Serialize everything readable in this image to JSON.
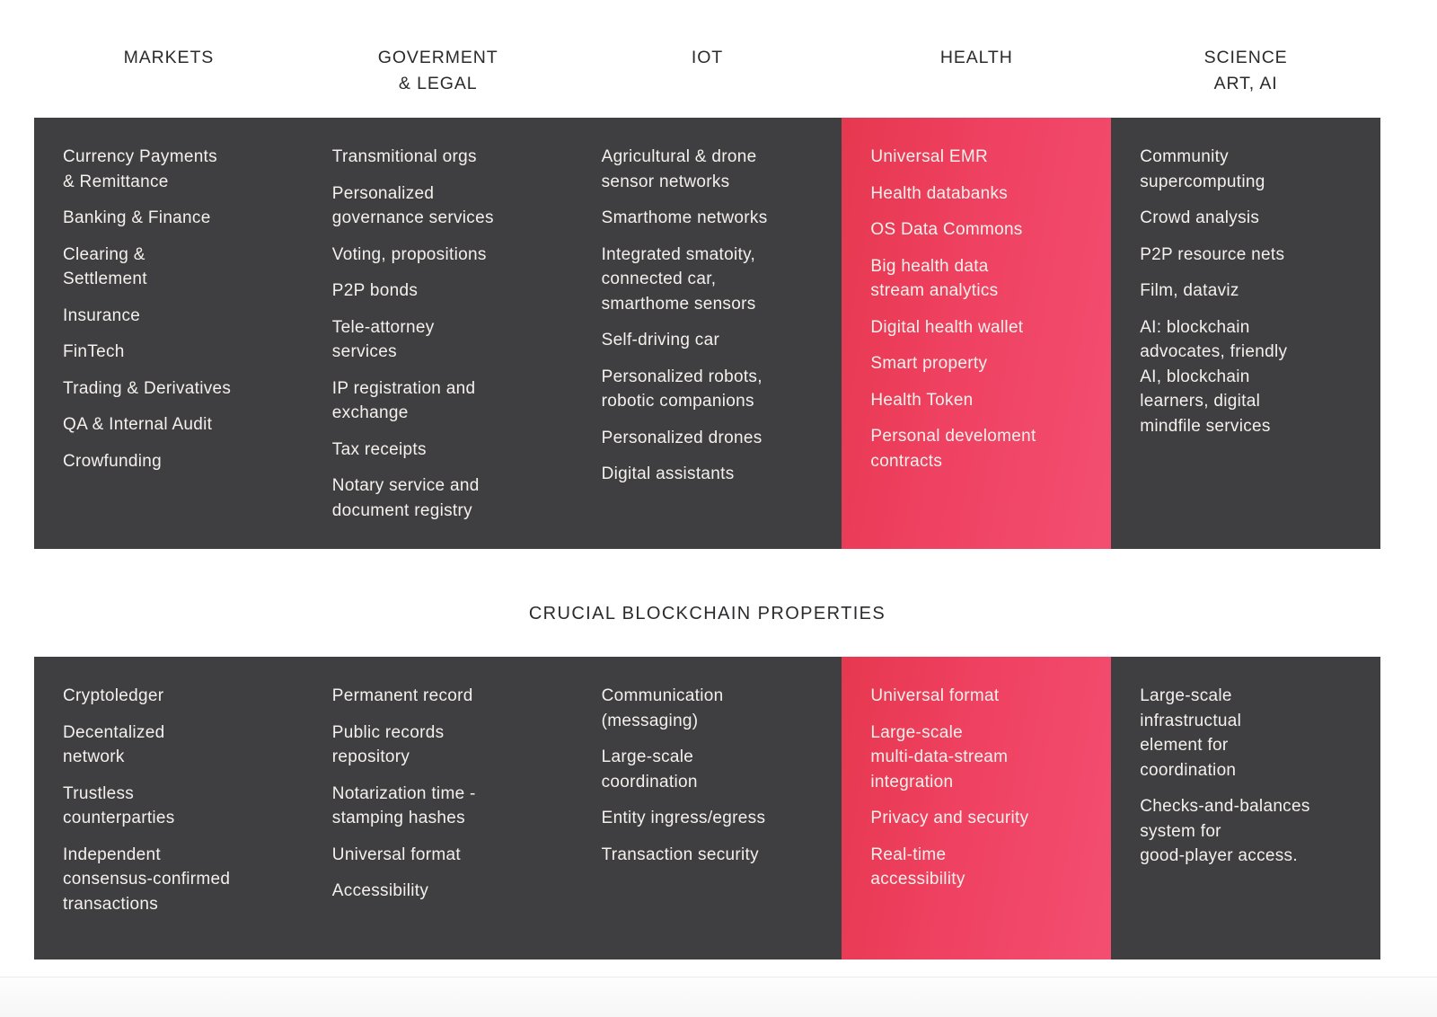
{
  "title": "CRUCIAL BLOCKCHAIN PROPERTIES",
  "colors": {
    "panel_dark": "#3f3e41",
    "highlight_gradient_start": "#e6384f",
    "highlight_gradient_end": "#f34e71",
    "panel_text": "#f4f1ec",
    "header_text": "#2b2a2d",
    "footer_bg": "#f8f8f9"
  },
  "columns": [
    {
      "id": "markets",
      "header": "MARKETS",
      "highlighted": false,
      "applications": [
        "Currency Payments\n& Remittance",
        "Banking & Finance",
        "Clearing &\nSettlement",
        "Insurance",
        "FinTech",
        "Trading & Derivatives",
        "QA & Internal Audit",
        "Crowfunding"
      ],
      "properties": [
        "Cryptoledger",
        "Decentalized\nnetwork",
        "Trustless\ncounterparties",
        "Independent\nconsensus-confirmed\ntransactions"
      ]
    },
    {
      "id": "government-legal",
      "header": "GOVERMENT\n& LEGAL",
      "highlighted": false,
      "applications": [
        "Transmitional orgs",
        "Personalized\ngovernance services",
        "Voting, propositions",
        "P2P bonds",
        "Tele-attorney\nservices",
        "IP registration and\nexchange",
        "Tax receipts",
        "Notary service and\ndocument registry"
      ],
      "properties": [
        "Permanent record",
        "Public records\nrepository",
        "Notarization time -\nstamping hashes",
        "Universal format",
        "Accessibility"
      ]
    },
    {
      "id": "iot",
      "header": "IOT",
      "highlighted": false,
      "applications": [
        "Agricultural & drone\nsensor networks",
        "Smarthome networks",
        "Integrated smatoity,\nconnected car,\nsmarthome sensors",
        "Self-driving car",
        "Personalized robots,\nrobotic companions",
        "Personalized drones",
        "Digital assistants"
      ],
      "properties": [
        "Communication\n(messaging)",
        "Large-scale\ncoordination",
        "Entity ingress/egress",
        "Transaction security"
      ]
    },
    {
      "id": "health",
      "header": "HEALTH",
      "highlighted": true,
      "applications": [
        "Universal EMR",
        "Health databanks",
        "OS Data Commons",
        "Big health data\nstream analytics",
        "Digital health wallet",
        "Smart property",
        "Health Token",
        "Personal develoment\ncontracts"
      ],
      "properties": [
        "Universal format",
        "Large-scale\nmulti-data-stream\nintegration",
        "Privacy and security",
        "Real-time\naccessibility"
      ]
    },
    {
      "id": "science-art-ai",
      "header": "SCIENCE\nART, AI",
      "highlighted": false,
      "applications": [
        "Community\nsupercomputing",
        "Crowd analysis",
        "P2P resource nets",
        "Film, dataviz",
        "AI: blockchain\nadvocates, friendly\nAI, blockchain\nlearners, digital\nmindfile services"
      ],
      "properties": [
        "Large-scale\ninfrastructual\nelement for\ncoordination",
        "Checks-and-balances\nsystem for\ngood-player access."
      ]
    }
  ]
}
